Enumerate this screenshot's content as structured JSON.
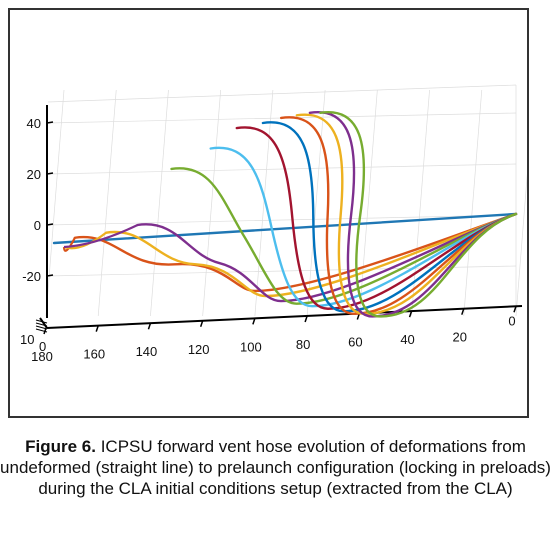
{
  "caption": {
    "label": "Figure 6.",
    "text": "ICPSU forward vent hose evolution of deformations from undeformed (straight line) to prelaunch configuration (locking in preloads) during the CLA initial conditions setup (extracted from the CLA)"
  },
  "chart_data": {
    "type": "line",
    "title": "",
    "xlabel": "",
    "ylabel": "",
    "zlabel": "",
    "projection": "3d-perspective",
    "grid": true,
    "legend": "none",
    "x_ticks": [
      180,
      160,
      140,
      120,
      100,
      80,
      60,
      40,
      20,
      0
    ],
    "z_ticks": [
      40,
      20,
      0,
      -20
    ],
    "y_ticks": [
      10,
      0
    ],
    "xlim": [
      0,
      180
    ],
    "zlim": [
      -30,
      45
    ],
    "series": [
      {
        "color": "#1f77b4",
        "apex": {
          "x": 180,
          "z": -12
        },
        "trough": {
          "x": 180,
          "z": -12
        }
      },
      {
        "color": "#d95319",
        "apex": {
          "x": 172,
          "z": -5
        },
        "trough": {
          "x": 100,
          "z": -18
        }
      },
      {
        "color": "#edb120",
        "apex": {
          "x": 160,
          "z": -3
        },
        "trough": {
          "x": 96,
          "z": -20
        }
      },
      {
        "color": "#7e2f8e",
        "apex": {
          "x": 148,
          "z": 0
        },
        "trough": {
          "x": 90,
          "z": -22
        }
      },
      {
        "color": "#77ac30",
        "apex": {
          "x": 135,
          "z": 22
        },
        "trough": {
          "x": 84,
          "z": -23
        }
      },
      {
        "color": "#4dbeee",
        "apex": {
          "x": 120,
          "z": 30
        },
        "trough": {
          "x": 78,
          "z": -24
        }
      },
      {
        "color": "#a2142f",
        "apex": {
          "x": 110,
          "z": 38
        },
        "trough": {
          "x": 72,
          "z": -25
        }
      },
      {
        "color": "#0072bd",
        "apex": {
          "x": 100,
          "z": 40
        },
        "trough": {
          "x": 66,
          "z": -26
        }
      },
      {
        "color": "#d95319",
        "apex": {
          "x": 93,
          "z": 42
        },
        "trough": {
          "x": 62,
          "z": -27
        }
      },
      {
        "color": "#edb120",
        "apex": {
          "x": 87,
          "z": 43
        },
        "trough": {
          "x": 58,
          "z": -27
        }
      },
      {
        "color": "#7e2f8e",
        "apex": {
          "x": 82,
          "z": 44
        },
        "trough": {
          "x": 55,
          "z": -28
        }
      },
      {
        "color": "#77ac30",
        "apex": {
          "x": 78,
          "z": 44
        },
        "trough": {
          "x": 52,
          "z": -28
        }
      }
    ]
  }
}
